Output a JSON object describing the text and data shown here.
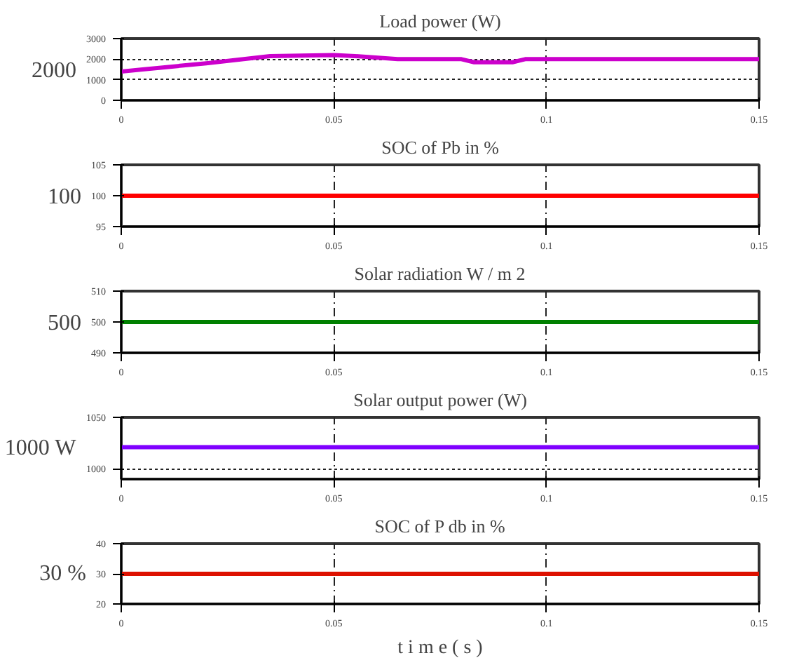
{
  "chart_data": [
    {
      "type": "line",
      "title": "Load power (W)",
      "ylabel": "2000",
      "x": [
        0,
        0.005,
        0.02,
        0.035,
        0.05,
        0.055,
        0.065,
        0.08,
        0.083,
        0.092,
        0.095,
        0.15
      ],
      "series": [
        {
          "color": "#cc00cc",
          "values": [
            1400,
            1500,
            1800,
            2150,
            2200,
            2150,
            2000,
            2000,
            1850,
            1850,
            2000,
            2000
          ]
        }
      ],
      "xlim": [
        0,
        0.15
      ],
      "xticks": [
        0,
        0.05,
        0.1,
        0.15
      ],
      "ylim": [
        0,
        3000
      ],
      "yticks": [
        0,
        1000,
        2000,
        3000
      ],
      "grid": true
    },
    {
      "type": "line",
      "title": "SOC of Pb in %",
      "ylabel": "100",
      "x": [
        0,
        0.15
      ],
      "series": [
        {
          "color": "#ff0000",
          "values": [
            100,
            100
          ]
        }
      ],
      "xlim": [
        0,
        0.15
      ],
      "xticks": [
        0,
        0.05,
        0.1,
        0.15
      ],
      "ylim": [
        95,
        105
      ],
      "yticks": [
        95,
        100,
        105
      ],
      "grid": true
    },
    {
      "type": "line",
      "title": "Solar radiation W / m 2",
      "ylabel": "500",
      "x": [
        0,
        0.15
      ],
      "series": [
        {
          "color": "#008000",
          "values": [
            500,
            500
          ]
        }
      ],
      "xlim": [
        0,
        0.15
      ],
      "xticks": [
        0,
        0.05,
        0.1,
        0.15
      ],
      "ylim": [
        490,
        510
      ],
      "yticks": [
        490,
        500,
        510
      ],
      "grid": true
    },
    {
      "type": "line",
      "title": "Solar output power (W)",
      "ylabel": "1000 W",
      "x": [
        0,
        0.15
      ],
      "series": [
        {
          "color": "#7f00ff",
          "values": [
            1021,
            1021
          ]
        }
      ],
      "xlim": [
        0,
        0.15
      ],
      "xticks": [
        0,
        0.05,
        0.1,
        0.15
      ],
      "ylim": [
        990,
        1050
      ],
      "yticks": [
        1000,
        1050
      ],
      "grid": true
    },
    {
      "type": "line",
      "title": "SOC of P db in %",
      "ylabel": "30 %",
      "xlabel": "t i m e ( s )",
      "x": [
        0,
        0.15
      ],
      "series": [
        {
          "color": "#dd1100",
          "values": [
            30,
            30
          ]
        }
      ],
      "xlim": [
        0,
        0.15
      ],
      "xticks": [
        0,
        0.05,
        0.1,
        0.15
      ],
      "ylim": [
        20,
        40
      ],
      "yticks": [
        20,
        30,
        40
      ],
      "grid": true
    }
  ]
}
